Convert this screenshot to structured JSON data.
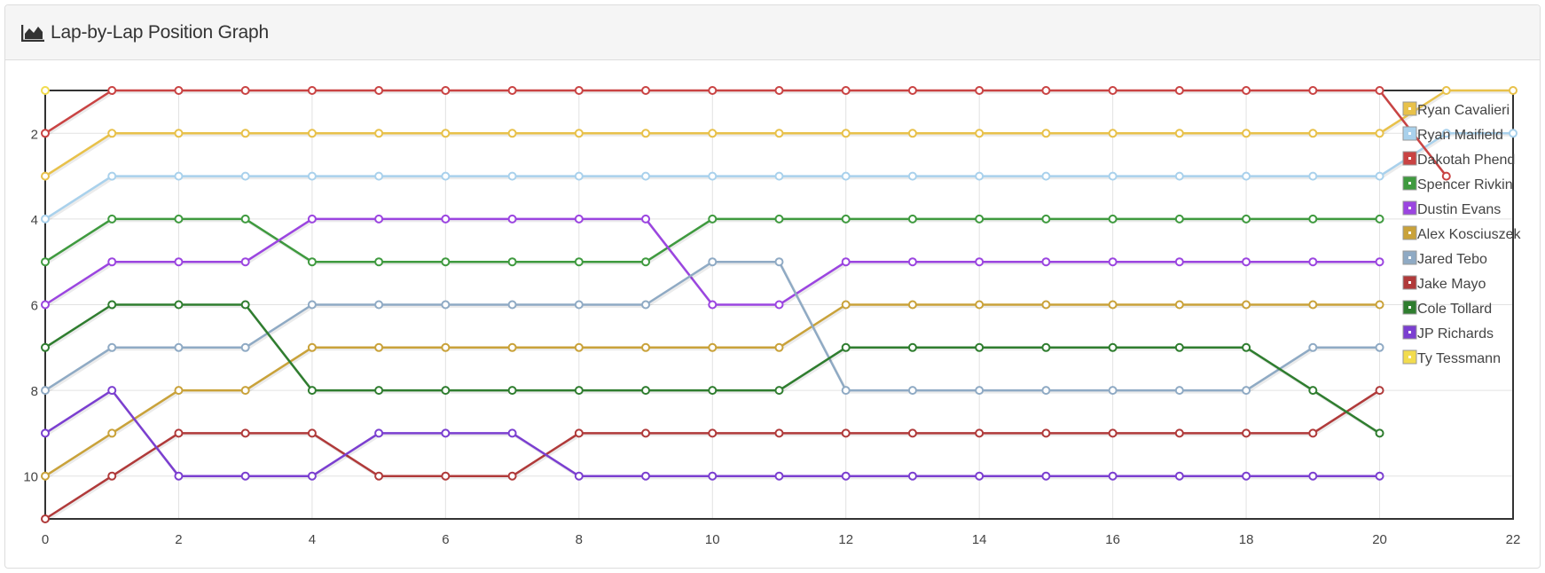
{
  "panel": {
    "title": "Lap-by-Lap Position Graph",
    "icon": "area-chart-icon"
  },
  "chart_data": {
    "type": "line",
    "title": "Lap-by-Lap Position Graph",
    "xlabel": "",
    "ylabel": "",
    "xlim": [
      0,
      22
    ],
    "ylim": [
      11,
      1
    ],
    "y_inverted": true,
    "x_ticks": [
      0,
      2,
      4,
      6,
      8,
      10,
      12,
      14,
      16,
      18,
      20,
      22
    ],
    "y_ticks": [
      2,
      4,
      6,
      8,
      10
    ],
    "grid": true,
    "legend_position": "right, inside plot",
    "series": [
      {
        "name": "Ryan Cavalieri",
        "color": "#e8c14a",
        "x": [
          0,
          1,
          2,
          3,
          4,
          5,
          6,
          7,
          8,
          9,
          10,
          11,
          12,
          13,
          14,
          15,
          16,
          17,
          18,
          19,
          20,
          21,
          22
        ],
        "values": [
          3,
          2,
          2,
          2,
          2,
          2,
          2,
          2,
          2,
          2,
          2,
          2,
          2,
          2,
          2,
          2,
          2,
          2,
          2,
          2,
          2,
          1,
          1
        ]
      },
      {
        "name": "Ryan Maifield",
        "color": "#a9d1ec",
        "x": [
          0,
          1,
          2,
          3,
          4,
          5,
          6,
          7,
          8,
          9,
          10,
          11,
          12,
          13,
          14,
          15,
          16,
          17,
          18,
          19,
          20,
          21,
          22
        ],
        "values": [
          4,
          3,
          3,
          3,
          3,
          3,
          3,
          3,
          3,
          3,
          3,
          3,
          3,
          3,
          3,
          3,
          3,
          3,
          3,
          3,
          3,
          2,
          2
        ]
      },
      {
        "name": "Dakotah Phend",
        "color": "#c94343",
        "x": [
          0,
          1,
          2,
          3,
          4,
          5,
          6,
          7,
          8,
          9,
          10,
          11,
          12,
          13,
          14,
          15,
          16,
          17,
          18,
          19,
          20,
          21
        ],
        "values": [
          2,
          1,
          1,
          1,
          1,
          1,
          1,
          1,
          1,
          1,
          1,
          1,
          1,
          1,
          1,
          1,
          1,
          1,
          1,
          1,
          1,
          3
        ]
      },
      {
        "name": "Spencer Rivkin",
        "color": "#3f9a3f",
        "x": [
          0,
          1,
          2,
          3,
          4,
          5,
          6,
          7,
          8,
          9,
          10,
          11,
          12,
          13,
          14,
          15,
          16,
          17,
          18,
          19,
          20
        ],
        "values": [
          5,
          4,
          4,
          4,
          5,
          5,
          5,
          5,
          5,
          5,
          4,
          4,
          4,
          4,
          4,
          4,
          4,
          4,
          4,
          4,
          4
        ]
      },
      {
        "name": "Dustin Evans",
        "color": "#9b45e0",
        "x": [
          0,
          1,
          2,
          3,
          4,
          5,
          6,
          7,
          8,
          9,
          10,
          11,
          12,
          13,
          14,
          15,
          16,
          17,
          18,
          19,
          20
        ],
        "values": [
          6,
          5,
          5,
          5,
          4,
          4,
          4,
          4,
          4,
          4,
          6,
          6,
          5,
          5,
          5,
          5,
          5,
          5,
          5,
          5,
          5
        ]
      },
      {
        "name": "Alex Kosciuszek",
        "color": "#c9a23a",
        "x": [
          0,
          1,
          2,
          3,
          4,
          5,
          6,
          7,
          8,
          9,
          10,
          11,
          12,
          13,
          14,
          15,
          16,
          17,
          18,
          19,
          20
        ],
        "values": [
          10,
          9,
          8,
          8,
          7,
          7,
          7,
          7,
          7,
          7,
          7,
          7,
          6,
          6,
          6,
          6,
          6,
          6,
          6,
          6,
          6
        ]
      },
      {
        "name": "Jared Tebo",
        "color": "#8faac4",
        "x": [
          0,
          1,
          2,
          3,
          4,
          5,
          6,
          7,
          8,
          9,
          10,
          11,
          12,
          13,
          14,
          15,
          16,
          17,
          18,
          19,
          20
        ],
        "values": [
          8,
          7,
          7,
          7,
          6,
          6,
          6,
          6,
          6,
          6,
          5,
          5,
          8,
          8,
          8,
          8,
          8,
          8,
          8,
          7,
          7
        ]
      },
      {
        "name": "Jake Mayo",
        "color": "#b03a3a",
        "x": [
          0,
          1,
          2,
          3,
          4,
          5,
          6,
          7,
          8,
          9,
          10,
          11,
          12,
          13,
          14,
          15,
          16,
          17,
          18,
          19,
          20
        ],
        "values": [
          11,
          10,
          9,
          9,
          9,
          10,
          10,
          10,
          9,
          9,
          9,
          9,
          9,
          9,
          9,
          9,
          9,
          9,
          9,
          9,
          8
        ]
      },
      {
        "name": "Cole Tollard",
        "color": "#2f7d2f",
        "x": [
          0,
          1,
          2,
          3,
          4,
          5,
          6,
          7,
          8,
          9,
          10,
          11,
          12,
          13,
          14,
          15,
          16,
          17,
          18,
          19,
          20
        ],
        "values": [
          7,
          6,
          6,
          6,
          8,
          8,
          8,
          8,
          8,
          8,
          8,
          8,
          7,
          7,
          7,
          7,
          7,
          7,
          7,
          8,
          9
        ]
      },
      {
        "name": "JP Richards",
        "color": "#7b3fd0",
        "x": [
          0,
          1,
          2,
          3,
          4,
          5,
          6,
          7,
          8,
          9,
          10,
          11,
          12,
          13,
          14,
          15,
          16,
          17,
          18,
          19,
          20
        ],
        "values": [
          9,
          8,
          10,
          10,
          10,
          9,
          9,
          9,
          10,
          10,
          10,
          10,
          10,
          10,
          10,
          10,
          10,
          10,
          10,
          10,
          10
        ]
      },
      {
        "name": "Ty Tessmann",
        "color": "#f2dc4e",
        "x": [
          0
        ],
        "values": [
          1
        ]
      }
    ]
  }
}
